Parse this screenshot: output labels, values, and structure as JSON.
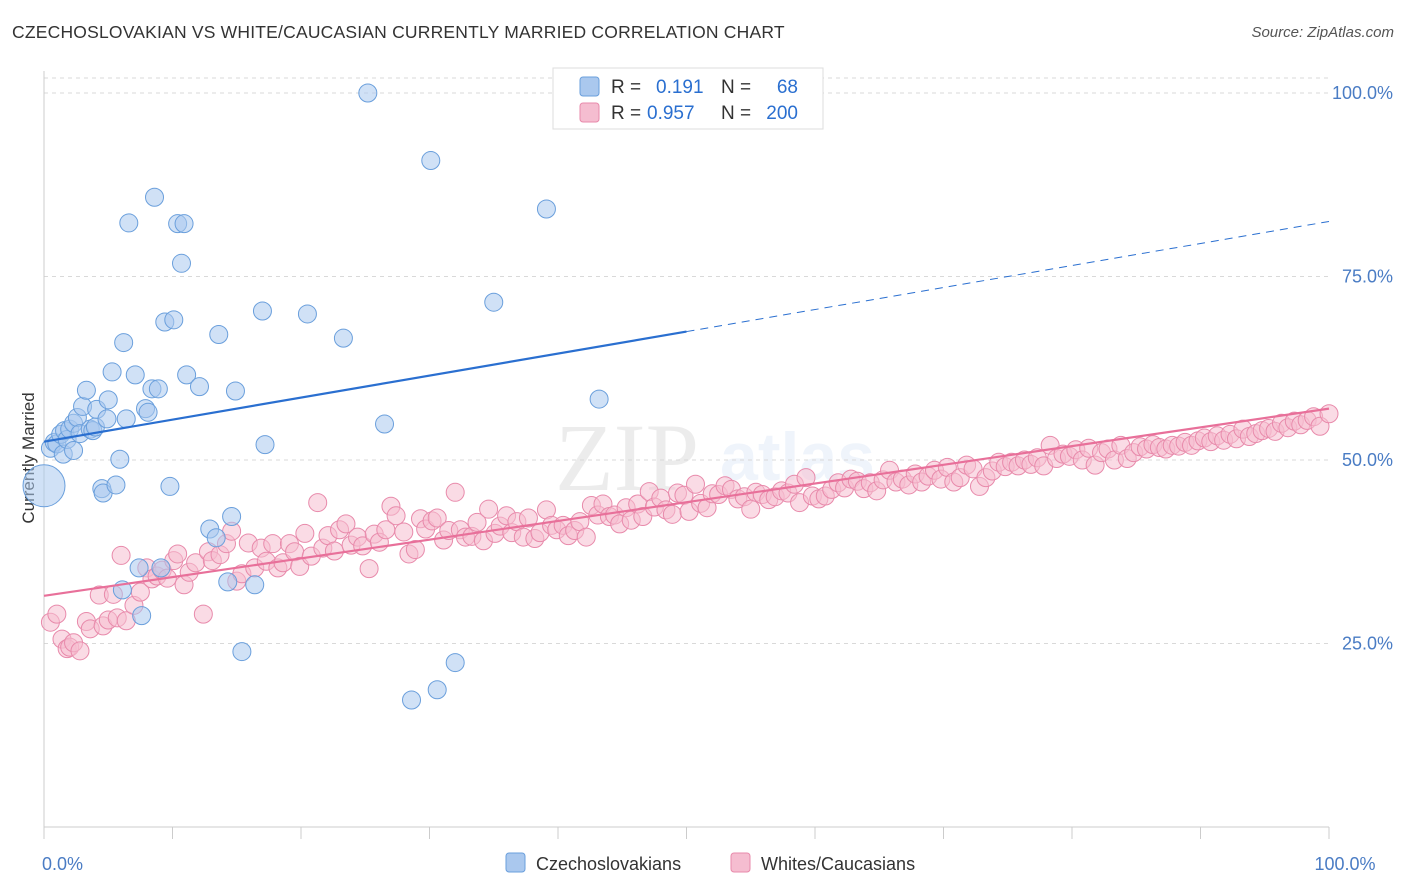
{
  "header": {
    "title": "CZECHOSLOVAKIAN VS WHITE/CAUCASIAN CURRENTLY MARRIED CORRELATION CHART",
    "source": "Source: ZipAtlas.com"
  },
  "watermark": {
    "text_zip": "ZIP",
    "text_atlas": "atlas"
  },
  "colors": {
    "blue_fill": "#aac8ee",
    "blue_stroke": "#6a9fdc",
    "blue_line": "#2a6fd0",
    "pink_fill": "#f5bdd0",
    "pink_stroke": "#e88aab",
    "pink_line": "#e8709a",
    "grid": "#d9d9d9",
    "tick_label": "#4a7cc4"
  },
  "chart_data": {
    "type": "scatter",
    "xlabel": "",
    "ylabel": "Currently Married",
    "xlim": [
      0,
      100
    ],
    "ylim": [
      0,
      103
    ],
    "x_tick_labels": [
      {
        "value": 0,
        "label": "0.0%"
      },
      {
        "value": 100,
        "label": "100.0%"
      }
    ],
    "y_tick_labels": [
      {
        "value": 25,
        "label": "25.0%"
      },
      {
        "value": 50,
        "label": "50.0%"
      },
      {
        "value": 75,
        "label": "75.0%"
      },
      {
        "value": 100,
        "label": "100.0%"
      }
    ],
    "grid": true,
    "legend_position": "top-center",
    "stats": [
      {
        "r_label": "R =",
        "r_value": "0.191",
        "n_label": "N =",
        "n_value": "68"
      },
      {
        "r_label": "R =",
        "r_value": "0.957",
        "n_label": "N =",
        "n_value": "200"
      }
    ],
    "series": [
      {
        "name": "Czechoslovakians",
        "color": "blue",
        "trend": {
          "x0": 0,
          "y0": 52.5,
          "x1": 50,
          "y1": 67.5,
          "dashed_to_x": 100,
          "dashed_to_y": 82.5
        },
        "points": [
          [
            0,
            46.5
          ],
          [
            0.5,
            51.6
          ],
          [
            0.8,
            52.4
          ],
          [
            1.0,
            52.2
          ],
          [
            1.3,
            53.5
          ],
          [
            1.5,
            50.8
          ],
          [
            1.6,
            54.0
          ],
          [
            1.8,
            52.8
          ],
          [
            2.0,
            54.2
          ],
          [
            2.3,
            51.3
          ],
          [
            2.3,
            55.0
          ],
          [
            2.6,
            55.8
          ],
          [
            2.8,
            53.6
          ],
          [
            3.0,
            57.3
          ],
          [
            3.3,
            59.5
          ],
          [
            3.6,
            54.2
          ],
          [
            3.8,
            54.0
          ],
          [
            4.0,
            54.5
          ],
          [
            4.1,
            56.9
          ],
          [
            4.5,
            46.1
          ],
          [
            4.6,
            45.5
          ],
          [
            4.9,
            55.6
          ],
          [
            5.0,
            58.2
          ],
          [
            5.3,
            62.0
          ],
          [
            5.6,
            46.6
          ],
          [
            5.9,
            50.1
          ],
          [
            6.1,
            32.3
          ],
          [
            6.2,
            66.0
          ],
          [
            6.4,
            55.6
          ],
          [
            6.6,
            82.3
          ],
          [
            7.1,
            61.6
          ],
          [
            7.4,
            35.3
          ],
          [
            7.6,
            28.8
          ],
          [
            7.9,
            57.0
          ],
          [
            8.1,
            56.5
          ],
          [
            8.4,
            59.7
          ],
          [
            8.6,
            85.8
          ],
          [
            8.9,
            59.7
          ],
          [
            9.1,
            35.3
          ],
          [
            9.4,
            68.8
          ],
          [
            9.8,
            46.4
          ],
          [
            10.1,
            69.1
          ],
          [
            10.4,
            82.2
          ],
          [
            10.7,
            76.8
          ],
          [
            10.9,
            82.2
          ],
          [
            11.1,
            61.6
          ],
          [
            12.1,
            60.0
          ],
          [
            12.9,
            40.6
          ],
          [
            13.4,
            39.4
          ],
          [
            13.6,
            67.1
          ],
          [
            14.3,
            33.4
          ],
          [
            14.6,
            42.3
          ],
          [
            14.9,
            59.4
          ],
          [
            15.4,
            23.9
          ],
          [
            16.4,
            33.0
          ],
          [
            17.0,
            70.3
          ],
          [
            17.2,
            52.1
          ],
          [
            20.5,
            69.9
          ],
          [
            23.3,
            66.6
          ],
          [
            25.2,
            100
          ],
          [
            26.5,
            54.9
          ],
          [
            28.6,
            17.3
          ],
          [
            30.1,
            90.8
          ],
          [
            30.6,
            18.7
          ],
          [
            32.0,
            22.4
          ],
          [
            35.0,
            71.5
          ],
          [
            39.1,
            84.2
          ],
          [
            43.2,
            58.3
          ]
        ]
      },
      {
        "name": "Whites/Caucasians",
        "color": "pink",
        "trend": {
          "x0": 0,
          "y0": 31.5,
          "x1": 100,
          "y1": 57.0
        },
        "points": [
          [
            0.5,
            27.9
          ],
          [
            1.0,
            29.0
          ],
          [
            1.4,
            25.6
          ],
          [
            1.8,
            24.3
          ],
          [
            2.0,
            24.5
          ],
          [
            2.3,
            25.1
          ],
          [
            2.8,
            24.0
          ],
          [
            3.3,
            28.0
          ],
          [
            3.6,
            27.0
          ],
          [
            4.3,
            31.6
          ],
          [
            4.6,
            27.4
          ],
          [
            5.0,
            28.2
          ],
          [
            5.4,
            31.7
          ],
          [
            5.7,
            28.5
          ],
          [
            6.0,
            37.0
          ],
          [
            6.4,
            28.1
          ],
          [
            7.0,
            30.2
          ],
          [
            7.5,
            32.0
          ],
          [
            8.0,
            35.3
          ],
          [
            8.4,
            33.8
          ],
          [
            8.8,
            34.2
          ],
          [
            9.2,
            35.0
          ],
          [
            9.6,
            33.9
          ],
          [
            10.1,
            36.3
          ],
          [
            10.4,
            37.2
          ],
          [
            10.9,
            33.0
          ],
          [
            11.3,
            34.7
          ],
          [
            11.8,
            36.0
          ],
          [
            12.4,
            29.0
          ],
          [
            12.8,
            37.5
          ],
          [
            13.1,
            36.3
          ],
          [
            13.7,
            37.1
          ],
          [
            14.2,
            38.6
          ],
          [
            14.6,
            40.3
          ],
          [
            15.0,
            33.5
          ],
          [
            15.4,
            34.5
          ],
          [
            15.9,
            38.7
          ],
          [
            16.4,
            35.3
          ],
          [
            16.9,
            38.0
          ],
          [
            17.3,
            36.2
          ],
          [
            17.8,
            38.6
          ],
          [
            18.2,
            35.3
          ],
          [
            18.6,
            36.0
          ],
          [
            19.1,
            38.6
          ],
          [
            19.5,
            37.5
          ],
          [
            19.9,
            35.5
          ],
          [
            20.3,
            40.0
          ],
          [
            20.8,
            36.9
          ],
          [
            21.3,
            44.2
          ],
          [
            21.7,
            38.0
          ],
          [
            22.1,
            39.7
          ],
          [
            22.6,
            37.6
          ],
          [
            23.0,
            40.5
          ],
          [
            23.5,
            41.3
          ],
          [
            23.9,
            38.4
          ],
          [
            24.4,
            39.5
          ],
          [
            24.8,
            38.3
          ],
          [
            25.3,
            35.2
          ],
          [
            25.7,
            39.9
          ],
          [
            26.1,
            38.8
          ],
          [
            26.6,
            40.5
          ],
          [
            27.0,
            43.7
          ],
          [
            27.4,
            42.4
          ],
          [
            28.0,
            40.2
          ],
          [
            28.4,
            37.2
          ],
          [
            28.9,
            37.8
          ],
          [
            29.3,
            42.0
          ],
          [
            29.7,
            40.6
          ],
          [
            30.2,
            41.7
          ],
          [
            30.6,
            42.1
          ],
          [
            31.1,
            39.1
          ],
          [
            31.5,
            40.4
          ],
          [
            32.0,
            45.6
          ],
          [
            32.4,
            40.5
          ],
          [
            32.8,
            39.5
          ],
          [
            33.3,
            39.6
          ],
          [
            33.7,
            41.5
          ],
          [
            34.2,
            39.0
          ],
          [
            34.6,
            43.3
          ],
          [
            35.1,
            40.0
          ],
          [
            35.5,
            41.0
          ],
          [
            36.0,
            42.4
          ],
          [
            36.4,
            40.1
          ],
          [
            36.8,
            41.6
          ],
          [
            37.3,
            39.5
          ],
          [
            37.7,
            42.1
          ],
          [
            38.2,
            39.3
          ],
          [
            38.6,
            40.1
          ],
          [
            39.1,
            43.2
          ],
          [
            39.5,
            41.1
          ],
          [
            39.9,
            40.5
          ],
          [
            40.4,
            41.1
          ],
          [
            40.8,
            39.7
          ],
          [
            41.3,
            40.4
          ],
          [
            41.7,
            41.6
          ],
          [
            42.2,
            39.5
          ],
          [
            42.6,
            43.8
          ],
          [
            43.1,
            42.5
          ],
          [
            43.5,
            44.0
          ],
          [
            44.0,
            42.3
          ],
          [
            44.4,
            42.5
          ],
          [
            44.8,
            41.3
          ],
          [
            45.3,
            43.5
          ],
          [
            45.7,
            41.8
          ],
          [
            46.2,
            44.0
          ],
          [
            46.6,
            42.3
          ],
          [
            47.1,
            45.7
          ],
          [
            47.5,
            43.6
          ],
          [
            48.0,
            44.8
          ],
          [
            48.4,
            43.2
          ],
          [
            48.9,
            42.6
          ],
          [
            49.3,
            45.5
          ],
          [
            49.8,
            45.2
          ],
          [
            50.2,
            43.0
          ],
          [
            50.7,
            46.7
          ],
          [
            51.1,
            44.1
          ],
          [
            51.6,
            43.5
          ],
          [
            52.0,
            45.4
          ],
          [
            52.5,
            45.3
          ],
          [
            53.0,
            46.5
          ],
          [
            53.5,
            46.0
          ],
          [
            54.0,
            44.7
          ],
          [
            54.5,
            45.0
          ],
          [
            55.0,
            43.3
          ],
          [
            55.4,
            45.6
          ],
          [
            55.9,
            45.3
          ],
          [
            56.4,
            44.6
          ],
          [
            56.9,
            45.0
          ],
          [
            57.4,
            45.8
          ],
          [
            57.9,
            45.5
          ],
          [
            58.4,
            46.7
          ],
          [
            58.8,
            44.2
          ],
          [
            59.3,
            47.6
          ],
          [
            59.8,
            45.1
          ],
          [
            60.3,
            44.7
          ],
          [
            60.8,
            45.1
          ],
          [
            61.3,
            46.0
          ],
          [
            61.8,
            46.9
          ],
          [
            62.3,
            46.2
          ],
          [
            62.8,
            47.4
          ],
          [
            63.3,
            47.1
          ],
          [
            63.8,
            46.1
          ],
          [
            64.3,
            46.9
          ],
          [
            64.8,
            45.8
          ],
          [
            65.3,
            47.3
          ],
          [
            65.8,
            48.6
          ],
          [
            66.3,
            47.0
          ],
          [
            66.8,
            47.4
          ],
          [
            67.3,
            46.6
          ],
          [
            67.8,
            48.1
          ],
          [
            68.3,
            47.0
          ],
          [
            68.8,
            47.8
          ],
          [
            69.3,
            48.6
          ],
          [
            69.8,
            47.4
          ],
          [
            70.3,
            49.0
          ],
          [
            70.8,
            47.0
          ],
          [
            71.3,
            47.6
          ],
          [
            71.8,
            49.3
          ],
          [
            72.3,
            48.8
          ],
          [
            72.8,
            46.4
          ],
          [
            73.3,
            47.6
          ],
          [
            73.8,
            48.5
          ],
          [
            74.3,
            49.7
          ],
          [
            74.8,
            49.1
          ],
          [
            75.3,
            49.7
          ],
          [
            75.8,
            49.2
          ],
          [
            76.3,
            50.0
          ],
          [
            76.8,
            49.4
          ],
          [
            77.3,
            50.3
          ],
          [
            77.8,
            49.2
          ],
          [
            78.3,
            52.0
          ],
          [
            78.8,
            50.2
          ],
          [
            79.3,
            50.8
          ],
          [
            79.8,
            50.5
          ],
          [
            80.3,
            51.4
          ],
          [
            80.8,
            50.0
          ],
          [
            81.3,
            51.6
          ],
          [
            81.8,
            49.3
          ],
          [
            82.3,
            51.0
          ],
          [
            82.8,
            51.5
          ],
          [
            83.3,
            50.0
          ],
          [
            83.8,
            52.0
          ],
          [
            84.3,
            50.2
          ],
          [
            84.8,
            51.0
          ],
          [
            85.3,
            51.8
          ],
          [
            85.8,
            51.5
          ],
          [
            86.3,
            52.1
          ],
          [
            86.8,
            51.7
          ],
          [
            87.3,
            51.5
          ],
          [
            87.8,
            52.0
          ],
          [
            88.3,
            51.9
          ],
          [
            88.8,
            52.4
          ],
          [
            89.3,
            52.0
          ],
          [
            89.8,
            52.6
          ],
          [
            90.3,
            53.0
          ],
          [
            90.8,
            52.5
          ],
          [
            91.3,
            53.3
          ],
          [
            91.8,
            52.7
          ],
          [
            92.3,
            53.5
          ],
          [
            92.8,
            52.9
          ],
          [
            93.3,
            54.2
          ],
          [
            93.8,
            53.2
          ],
          [
            94.3,
            53.6
          ],
          [
            94.8,
            54.0
          ],
          [
            95.3,
            54.3
          ],
          [
            95.8,
            53.9
          ],
          [
            96.3,
            55.0
          ],
          [
            96.8,
            54.4
          ],
          [
            97.3,
            55.3
          ],
          [
            97.8,
            54.8
          ],
          [
            98.3,
            55.4
          ],
          [
            98.8,
            55.9
          ],
          [
            99.3,
            54.6
          ],
          [
            100,
            56.3
          ]
        ]
      }
    ]
  }
}
